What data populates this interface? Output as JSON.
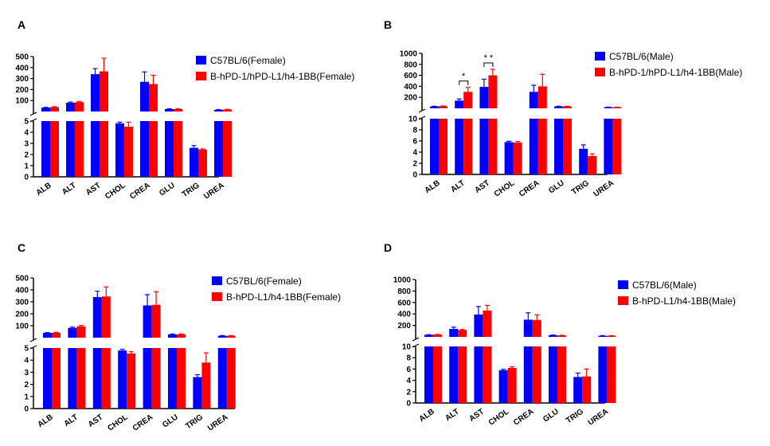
{
  "colors": {
    "series1": "#0000ff",
    "series2": "#ff0000",
    "axis": "#000000"
  },
  "chart_data": [
    {
      "panel": "A",
      "type": "bar",
      "categories": [
        "ALB",
        "ALT",
        "AST",
        "CHOL",
        "CREA",
        "GLU",
        "TRIG",
        "UREA"
      ],
      "y_axis_break": true,
      "lower_ylim": [
        0,
        5
      ],
      "lower_ticks": [
        0,
        1,
        2,
        3,
        4,
        5
      ],
      "upper_ylim": [
        0,
        500
      ],
      "upper_ticks": [
        100,
        200,
        300,
        400,
        500
      ],
      "series": [
        {
          "name": "C57BL/6(Female)",
          "values": [
            35,
            80,
            340,
            4.8,
            270,
            22,
            2.6,
            16
          ],
          "errors": [
            3,
            6,
            50,
            0.1,
            90,
            3,
            0.2,
            2
          ]
        },
        {
          "name": "B-hPD-1/hPD-L1/h4-1BB(Female)",
          "values": [
            40,
            85,
            365,
            4.5,
            250,
            22,
            2.45,
            18
          ],
          "errors": [
            3,
            6,
            120,
            0.4,
            80,
            3,
            0.05,
            2
          ]
        }
      ],
      "significance": []
    },
    {
      "panel": "B",
      "type": "bar",
      "categories": [
        "ALB",
        "ALT",
        "AST",
        "CHOL",
        "CREA",
        "GLU",
        "TRIG",
        "UREA"
      ],
      "y_axis_break": true,
      "lower_ylim": [
        0,
        10
      ],
      "lower_ticks": [
        0,
        2,
        4,
        6,
        8,
        10
      ],
      "upper_ylim": [
        0,
        1000
      ],
      "upper_ticks": [
        200,
        400,
        600,
        800,
        1000
      ],
      "series": [
        {
          "name": "C57BL/6(Male)",
          "values": [
            35,
            140,
            390,
            5.8,
            300,
            35,
            4.6,
            20
          ],
          "errors": [
            3,
            30,
            140,
            0.15,
            120,
            3,
            0.7,
            2
          ]
        },
        {
          "name": "B-hPD-1/hPD-L1/h4-1BB(Male)",
          "values": [
            40,
            300,
            600,
            5.7,
            400,
            35,
            3.3,
            20
          ],
          "errors": [
            3,
            80,
            110,
            0.2,
            220,
            3,
            0.4,
            2
          ]
        }
      ],
      "significance": [
        {
          "category": "ALT",
          "label": "*"
        },
        {
          "category": "AST",
          "label": "* *"
        }
      ]
    },
    {
      "panel": "C",
      "type": "bar",
      "categories": [
        "ALB",
        "ALT",
        "AST",
        "CHOL",
        "CREA",
        "GLU",
        "TRIG",
        "UREA"
      ],
      "y_axis_break": true,
      "lower_ylim": [
        0,
        5
      ],
      "lower_ticks": [
        0,
        1,
        2,
        3,
        4,
        5
      ],
      "upper_ylim": [
        0,
        500
      ],
      "upper_ticks": [
        100,
        200,
        300,
        400,
        500
      ],
      "series": [
        {
          "name": "C57BL/6(Female)",
          "values": [
            40,
            82,
            340,
            4.8,
            270,
            28,
            2.6,
            16
          ],
          "errors": [
            3,
            6,
            50,
            0.1,
            90,
            3,
            0.2,
            2
          ]
        },
        {
          "name": "B-hPD-L1/h4-1BB(Female)",
          "values": [
            42,
            95,
            345,
            4.55,
            275,
            28,
            3.8,
            16
          ],
          "errors": [
            3,
            8,
            80,
            0.15,
            110,
            3,
            0.8,
            2
          ]
        }
      ],
      "significance": []
    },
    {
      "panel": "D",
      "type": "bar",
      "categories": [
        "ALB",
        "ALT",
        "AST",
        "CHOL",
        "CREA",
        "GLU",
        "TRIG",
        "UREA"
      ],
      "y_axis_break": true,
      "lower_ylim": [
        0,
        10
      ],
      "lower_ticks": [
        0,
        2,
        4,
        6,
        8,
        10
      ],
      "upper_ylim": [
        0,
        1000
      ],
      "upper_ticks": [
        200,
        400,
        600,
        800,
        1000
      ],
      "series": [
        {
          "name": "C57BL/6(Male)",
          "values": [
            35,
            140,
            390,
            5.8,
            300,
            30,
            4.6,
            20
          ],
          "errors": [
            3,
            30,
            140,
            0.15,
            120,
            3,
            0.7,
            2
          ]
        },
        {
          "name": "B-hPD-L1/h4-1BB(Male)",
          "values": [
            40,
            120,
            460,
            6.2,
            295,
            25,
            4.7,
            20
          ],
          "errors": [
            3,
            8,
            90,
            0.2,
            90,
            3,
            1.3,
            2
          ]
        }
      ],
      "significance": []
    }
  ]
}
